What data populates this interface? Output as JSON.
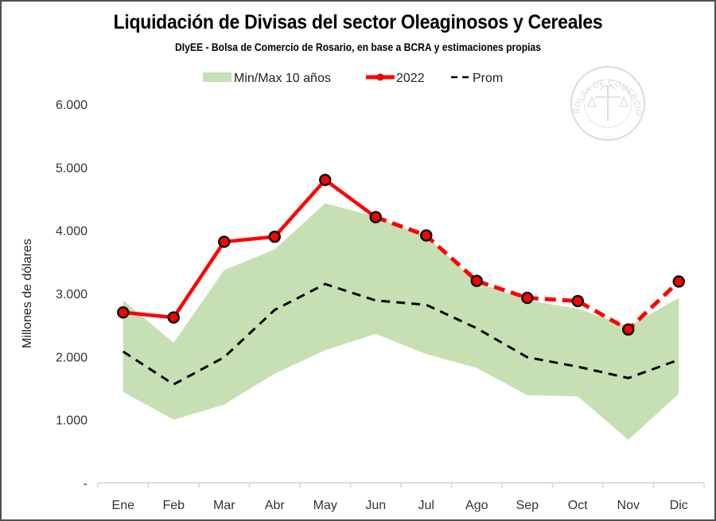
{
  "chart_data": {
    "type": "line",
    "title": "Liquidación de Divisas del sector Oleaginosos y Cereales",
    "subtitle": "DIyEE - Bolsa de Comercio de Rosario, en base a BCRA y estimaciones propias",
    "xlabel": "",
    "ylabel": "Millones de dólares",
    "ylim": [
      0,
      6000
    ],
    "yticks": [
      0,
      1000,
      2000,
      3000,
      4000,
      5000,
      6000
    ],
    "ytick_labels": [
      "-",
      "1.000",
      "2.000",
      "3.000",
      "4.000",
      "5.000",
      "6.000"
    ],
    "categories": [
      "Ene",
      "Feb",
      "Mar",
      "Abr",
      "May",
      "Jun",
      "Jul",
      "Ago",
      "Sep",
      "Oct",
      "Nov",
      "Dic"
    ],
    "grid": false,
    "legend_position": "top-center",
    "band": {
      "name": "Min/Max 10 años",
      "color": "#c6e0b4",
      "min": [
        1440,
        1000,
        1240,
        1730,
        2100,
        2360,
        2040,
        1820,
        1390,
        1370,
        680,
        1410
      ],
      "max": [
        2890,
        2220,
        3370,
        3700,
        4430,
        4220,
        3900,
        3180,
        2890,
        2760,
        2480,
        2930
      ]
    },
    "series": [
      {
        "name": "2022",
        "color": "#ff0000",
        "marker": "circle",
        "style": "solid-then-dashed",
        "dashed_from_index": 5,
        "values": [
          2700,
          2620,
          3820,
          3900,
          4800,
          4210,
          3920,
          3200,
          2930,
          2880,
          2430,
          3190
        ]
      },
      {
        "name": "Prom",
        "color": "#000000",
        "style": "dashed",
        "values": [
          2080,
          1560,
          1990,
          2740,
          3150,
          2890,
          2820,
          2450,
          1990,
          1840,
          1660,
          1950
        ]
      }
    ],
    "watermark": "Bolsa de Comercio de Rosario seal"
  },
  "watermark_text": "BOLSA DE COMERCIO DE ROSARIO"
}
